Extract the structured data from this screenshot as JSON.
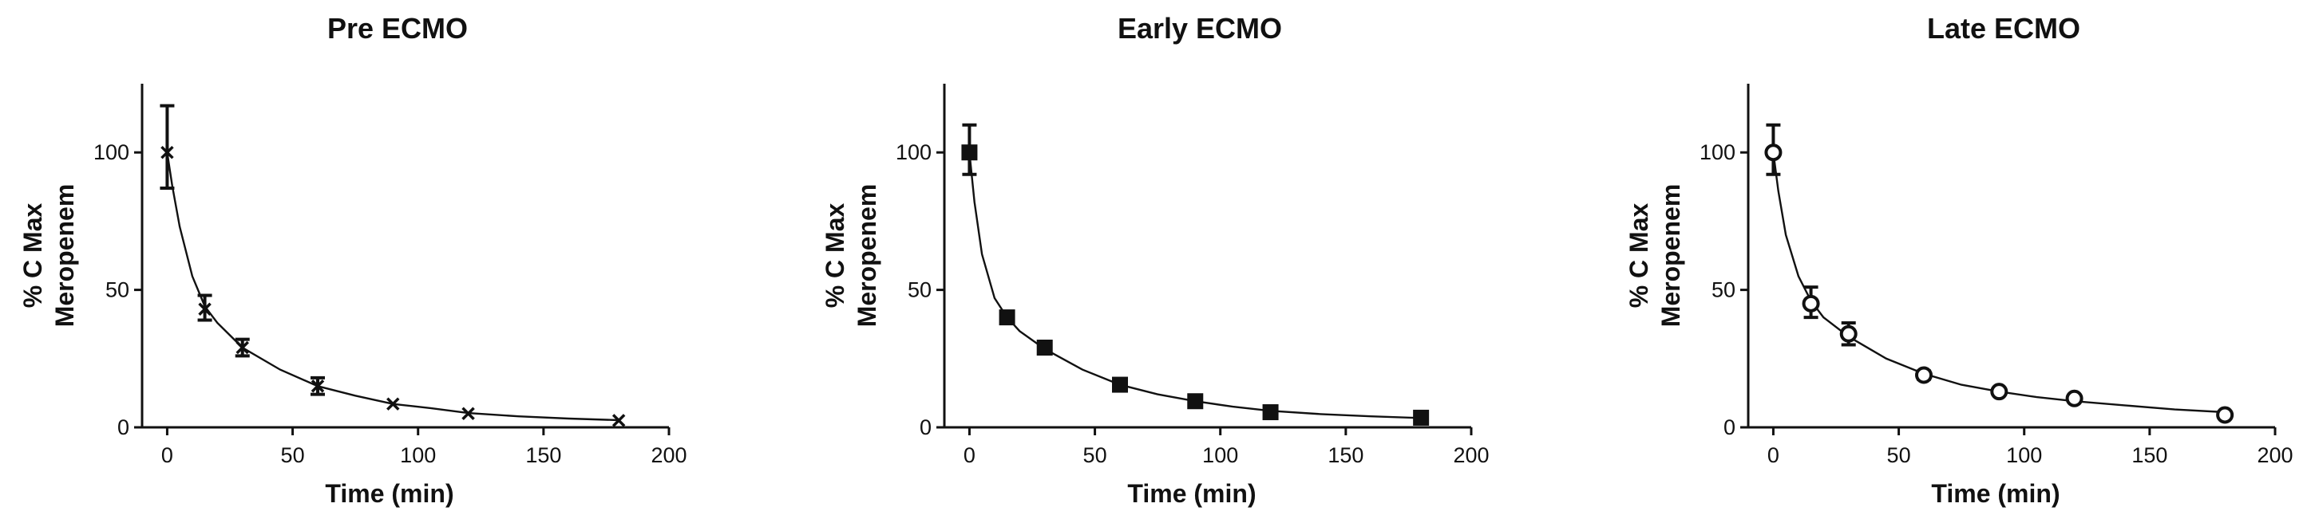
{
  "chart_data": [
    {
      "type": "scatter",
      "title": "Pre ECMO",
      "xlabel": "Time (min)",
      "ylabel_lines": [
        "% C Max",
        "Meropenem"
      ],
      "xlim": [
        -10,
        200
      ],
      "ylim": [
        0,
        125
      ],
      "xticks": [
        0,
        50,
        100,
        150,
        200
      ],
      "yticks": [
        0,
        50,
        100
      ],
      "marker": "x",
      "grid": false,
      "x": [
        0,
        15,
        30,
        60,
        90,
        120,
        180
      ],
      "y": [
        100,
        43,
        29,
        15,
        8.5,
        5,
        2.5
      ],
      "err_low": [
        87,
        39,
        26,
        12,
        8,
        4.5,
        2
      ],
      "err_high": [
        117,
        48,
        32,
        18,
        9,
        5.5,
        3
      ],
      "fit": {
        "x": [
          0,
          2,
          5,
          10,
          15,
          20,
          30,
          45,
          60,
          75,
          90,
          105,
          120,
          140,
          160,
          180
        ],
        "y": [
          100,
          88,
          73,
          55,
          44,
          38,
          29,
          21,
          15,
          11.5,
          8.5,
          7,
          5.2,
          4,
          3.2,
          2.6
        ]
      }
    },
    {
      "type": "scatter",
      "title": "Early ECMO",
      "xlabel": "Time (min)",
      "ylabel_lines": [
        "% C Max",
        "Meropenem"
      ],
      "xlim": [
        -10,
        200
      ],
      "ylim": [
        0,
        125
      ],
      "xticks": [
        0,
        50,
        100,
        150,
        200
      ],
      "yticks": [
        0,
        50,
        100
      ],
      "marker": "square",
      "grid": false,
      "x": [
        0,
        15,
        30,
        60,
        90,
        120,
        180
      ],
      "y": [
        100,
        40,
        29,
        15.5,
        9.5,
        5.5,
        3.5
      ],
      "err_low": [
        92,
        38,
        27,
        14,
        8.5,
        4.5,
        2
      ],
      "err_high": [
        110,
        42,
        30,
        17,
        10.5,
        6.5,
        5
      ],
      "fit": {
        "x": [
          0,
          2,
          5,
          10,
          15,
          20,
          30,
          45,
          60,
          75,
          90,
          105,
          120,
          140,
          160,
          180
        ],
        "y": [
          100,
          82,
          63,
          47,
          40,
          35,
          28.5,
          21,
          15.5,
          12,
          9.5,
          7.5,
          6,
          4.8,
          4,
          3.4
        ]
      }
    },
    {
      "type": "scatter",
      "title": "Late ECMO",
      "xlabel": "Time (min)",
      "ylabel_lines": [
        "% C Max",
        "Meropenem"
      ],
      "xlim": [
        -10,
        200
      ],
      "ylim": [
        0,
        125
      ],
      "xticks": [
        0,
        50,
        100,
        150,
        200
      ],
      "yticks": [
        0,
        50,
        100
      ],
      "marker": "circle",
      "grid": false,
      "x": [
        0,
        15,
        30,
        60,
        90,
        120,
        180
      ],
      "y": [
        100,
        45,
        34,
        19,
        13,
        10.5,
        4.5
      ],
      "err_low": [
        92,
        40,
        30,
        17.5,
        12,
        9.5,
        3.5
      ],
      "err_high": [
        110,
        51,
        38,
        20.5,
        14,
        11.5,
        5.5
      ],
      "fit": {
        "x": [
          0,
          2,
          5,
          10,
          15,
          20,
          30,
          45,
          60,
          75,
          90,
          105,
          120,
          140,
          160,
          180
        ],
        "y": [
          100,
          86,
          70,
          55,
          46,
          40,
          33,
          25,
          19.5,
          15.5,
          13,
          11,
          9.5,
          8,
          6.5,
          5.5
        ]
      }
    }
  ]
}
